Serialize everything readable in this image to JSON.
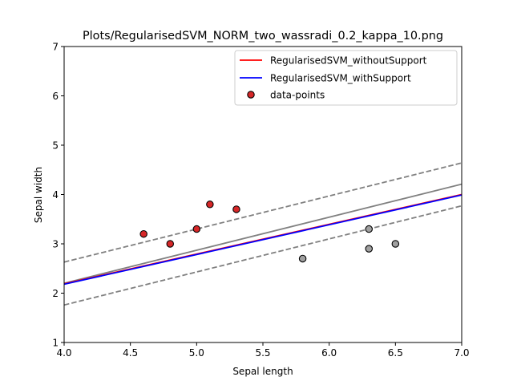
{
  "chart_data": {
    "type": "scatter",
    "title": "Plots/RegularisedSVM_NORM_two_wassradi_0.2_kappa_10.png",
    "xlabel": "Sepal length",
    "ylabel": "Sepal width",
    "xlim": [
      4.0,
      7.0
    ],
    "ylim": [
      1,
      7
    ],
    "xticks": [
      "4.0",
      "4.5",
      "5.0",
      "5.5",
      "6.0",
      "6.5",
      "7.0"
    ],
    "yticks": [
      "1",
      "2",
      "3",
      "4",
      "5",
      "6",
      "7"
    ],
    "grid": false,
    "legend_position": "upper right",
    "series": [
      {
        "name": "RegularisedSVM_withoutSupport",
        "kind": "line",
        "color": "#ff0000",
        "x": [
          4.0,
          7.0
        ],
        "y": [
          2.19,
          4.0
        ]
      },
      {
        "name": "RegularisedSVM_withSupport",
        "kind": "line",
        "color": "#0000ff",
        "x": [
          4.0,
          7.0
        ],
        "y": [
          2.18,
          3.99
        ]
      },
      {
        "name": "data-points",
        "kind": "scatter",
        "points": [
          {
            "x": 4.6,
            "y": 3.2,
            "class": "red"
          },
          {
            "x": 4.8,
            "y": 3.0,
            "class": "red"
          },
          {
            "x": 5.0,
            "y": 3.3,
            "class": "red"
          },
          {
            "x": 5.1,
            "y": 3.8,
            "class": "red"
          },
          {
            "x": 5.3,
            "y": 3.7,
            "class": "red"
          },
          {
            "x": 5.8,
            "y": 2.7,
            "class": "gray"
          },
          {
            "x": 6.3,
            "y": 3.3,
            "class": "gray"
          },
          {
            "x": 6.3,
            "y": 2.9,
            "class": "gray"
          },
          {
            "x": 6.5,
            "y": 3.0,
            "class": "gray"
          }
        ]
      }
    ],
    "unlabeled_lines": [
      {
        "style": "solid",
        "color": "#808080",
        "x": [
          4.0,
          7.0
        ],
        "y": [
          2.2,
          4.21
        ]
      },
      {
        "style": "dashed",
        "color": "#808080",
        "x": [
          4.0,
          7.0
        ],
        "y": [
          2.63,
          4.64
        ]
      },
      {
        "style": "dashed",
        "color": "#808080",
        "x": [
          4.0,
          7.0
        ],
        "y": [
          1.76,
          3.77
        ]
      }
    ],
    "colors": {
      "red_class": "#d62728",
      "gray_class": "#a0a0a0",
      "marker_edge": "#000000"
    }
  }
}
